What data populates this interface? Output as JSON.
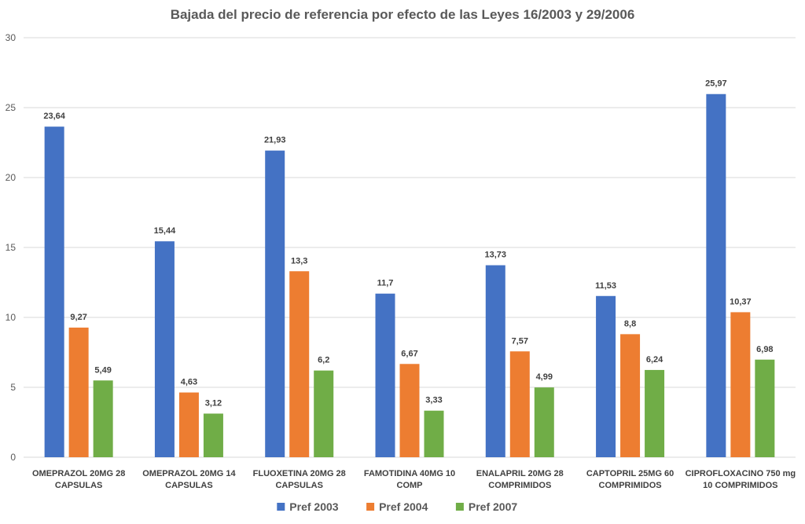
{
  "chart_data": {
    "type": "bar",
    "title": "Bajada del precio de referencia por efecto de las Leyes 16/2003 y 29/2006",
    "xlabel": "",
    "ylabel": "",
    "ylim": [
      0,
      30
    ],
    "yticks": [
      0,
      5,
      10,
      15,
      20,
      25,
      30
    ],
    "grid": true,
    "legend_position": "bottom",
    "decimal_separator": ",",
    "categories": [
      [
        "OMEPRAZOL 20MG 28",
        "CAPSULAS"
      ],
      [
        "OMEPRAZOL 20MG 14",
        "CAPSULAS"
      ],
      [
        "FLUOXETINA 20MG 28",
        "CAPSULAS"
      ],
      [
        "FAMOTIDINA 40MG 10",
        "COMP"
      ],
      [
        "ENALAPRIL 20MG 28",
        "COMPRIMIDOS"
      ],
      [
        "CAPTOPRIL 25MG 60",
        "COMPRIMIDOS"
      ],
      [
        "CIPROFLOXACINO 750 mg",
        "10 COMPRIMIDOS"
      ]
    ],
    "series": [
      {
        "name": "Pref 2003",
        "color": "#4472C4",
        "values": [
          23.64,
          15.44,
          21.93,
          11.7,
          13.73,
          11.53,
          25.97
        ]
      },
      {
        "name": "Pref 2004",
        "color": "#ED7D31",
        "values": [
          9.27,
          4.63,
          13.3,
          6.67,
          7.57,
          8.8,
          10.37
        ]
      },
      {
        "name": "Pref 2007",
        "color": "#70AD47",
        "values": [
          5.49,
          3.12,
          6.2,
          3.33,
          4.99,
          6.24,
          6.98
        ]
      }
    ]
  }
}
